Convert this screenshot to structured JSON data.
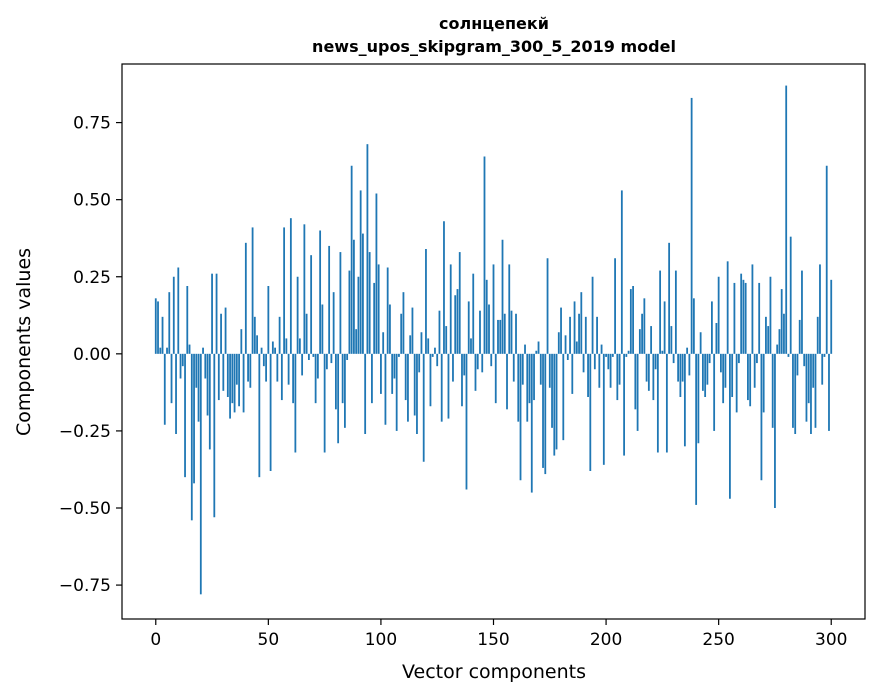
{
  "chart_data": {
    "type": "bar",
    "title": "солнцепекй",
    "subtitle": "news_upos_skipgram_300_5_2019 model",
    "xlabel": "Vector components",
    "ylabel": "Components values",
    "xlim": [
      -15,
      315
    ],
    "ylim": [
      -0.86,
      0.94
    ],
    "xticks": [
      0,
      50,
      100,
      150,
      200,
      250,
      300
    ],
    "xtick_labels": [
      "0",
      "50",
      "100",
      "150",
      "200",
      "250",
      "300"
    ],
    "yticks": [
      -0.75,
      -0.5,
      -0.25,
      0.0,
      0.25,
      0.5,
      0.75
    ],
    "ytick_labels": [
      "−0.75",
      "−0.50",
      "−0.25",
      "0.00",
      "0.25",
      "0.50",
      "0.75"
    ],
    "grid": false,
    "color": "#1f77b4",
    "values": [
      0.18,
      0.17,
      0.02,
      0.12,
      -0.23,
      0.02,
      0.2,
      -0.16,
      0.25,
      -0.26,
      0.28,
      -0.08,
      -0.04,
      -0.4,
      0.22,
      0.03,
      -0.54,
      -0.42,
      -0.11,
      -0.22,
      -0.78,
      0.02,
      -0.08,
      -0.2,
      -0.31,
      0.26,
      -0.53,
      0.26,
      -0.15,
      0.13,
      -0.12,
      0.15,
      -0.14,
      -0.21,
      -0.16,
      -0.19,
      -0.1,
      -0.17,
      0.08,
      -0.19,
      0.36,
      -0.09,
      -0.11,
      0.41,
      0.12,
      0.06,
      -0.4,
      0.02,
      -0.04,
      -0.09,
      0.22,
      -0.38,
      0.04,
      0.02,
      -0.09,
      0.12,
      -0.15,
      0.41,
      0.05,
      -0.1,
      0.44,
      -0.16,
      -0.32,
      0.25,
      0.05,
      -0.07,
      0.42,
      0.13,
      -0.02,
      0.32,
      -0.01,
      -0.16,
      -0.08,
      0.4,
      0.16,
      -0.32,
      -0.05,
      0.35,
      -0.03,
      0.2,
      -0.18,
      -0.29,
      0.33,
      -0.16,
      -0.24,
      -0.02,
      0.27,
      0.61,
      0.37,
      0.08,
      0.25,
      0.53,
      0.39,
      -0.26,
      0.68,
      0.33,
      -0.16,
      0.23,
      0.52,
      0.29,
      -0.13,
      0.07,
      -0.23,
      0.28,
      0.16,
      -0.13,
      -0.08,
      -0.25,
      -0.01,
      0.13,
      0.2,
      -0.15,
      -0.22,
      0.06,
      0.15,
      -0.2,
      -0.26,
      -0.06,
      0.07,
      -0.35,
      0.34,
      0.05,
      -0.17,
      -0.01,
      0.02,
      -0.04,
      0.14,
      -0.22,
      0.43,
      0.09,
      -0.21,
      0.29,
      -0.09,
      0.19,
      0.21,
      0.33,
      -0.17,
      -0.07,
      -0.44,
      0.17,
      0.05,
      0.26,
      -0.12,
      -0.05,
      0.14,
      -0.06,
      0.64,
      0.24,
      0.16,
      -0.04,
      0.29,
      -0.16,
      0.11,
      0.11,
      0.37,
      0.13,
      -0.18,
      0.29,
      0.14,
      -0.09,
      0.13,
      -0.22,
      -0.41,
      -0.1,
      0.03,
      -0.22,
      -0.16,
      -0.45,
      -0.15,
      0.01,
      0.04,
      -0.1,
      -0.37,
      -0.39,
      0.31,
      -0.11,
      -0.24,
      -0.33,
      -0.31,
      0.07,
      0.15,
      -0.28,
      0.06,
      -0.02,
      0.12,
      -0.13,
      0.17,
      0.04,
      0.13,
      0.2,
      -0.06,
      0.12,
      -0.14,
      -0.38,
      0.25,
      -0.05,
      0.12,
      -0.11,
      0.03,
      -0.36,
      -0.01,
      -0.05,
      -0.11,
      -0.01,
      0.31,
      -0.15,
      -0.1,
      0.53,
      -0.33,
      -0.01,
      0.01,
      0.21,
      0.22,
      -0.18,
      -0.25,
      0.08,
      0.13,
      0.18,
      -0.09,
      -0.12,
      0.09,
      -0.15,
      -0.05,
      -0.32,
      0.27,
      0.01,
      0.17,
      -0.32,
      0.36,
      0.09,
      -0.03,
      0.27,
      -0.09,
      -0.14,
      -0.09,
      -0.3,
      0.02,
      -0.07,
      0.83,
      0.18,
      -0.49,
      -0.29,
      0.07,
      -0.12,
      -0.14,
      -0.1,
      -0.03,
      0.17,
      -0.25,
      0.1,
      0.25,
      -0.06,
      -0.16,
      -0.11,
      0.3,
      -0.47,
      -0.14,
      0.23,
      -0.19,
      -0.03,
      0.26,
      0.24,
      0.23,
      -0.15,
      -0.17,
      0.29,
      -0.11,
      -0.03,
      0.23,
      -0.41,
      -0.19,
      0.12,
      0.09,
      0.25,
      -0.24,
      -0.5,
      0.03,
      0.08,
      0.21,
      0.13,
      0.87,
      -0.01,
      0.38,
      -0.24,
      -0.26,
      -0.07,
      0.11,
      0.27,
      -0.04,
      -0.22,
      -0.16,
      -0.26,
      -0.11,
      -0.24,
      0.12,
      0.29,
      -0.1,
      -0.01,
      0.61,
      -0.25,
      0.24
    ]
  }
}
